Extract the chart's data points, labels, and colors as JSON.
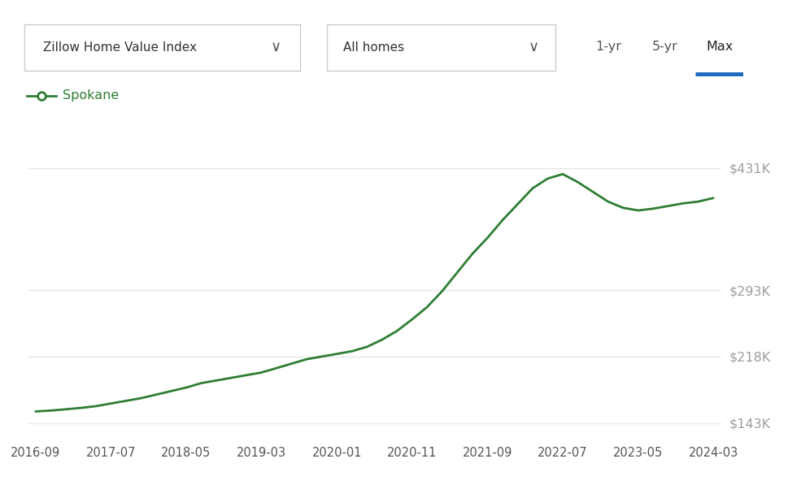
{
  "line_color": "#2e7d32",
  "background_color": "#ffffff",
  "grid_color": "#e8e8e8",
  "ylabel_color": "#9e9e9e",
  "xlabel_color": "#555555",
  "legend_label": "Spokane",
  "y_ticks": [
    143000,
    218000,
    293000,
    431000
  ],
  "y_tick_labels": [
    "$143K",
    "$218K",
    "$293K",
    "$431K"
  ],
  "ylim": [
    125000,
    470000
  ],
  "x_tick_labels": [
    "2016-09",
    "2017-07",
    "2018-05",
    "2019-03",
    "2020-01",
    "2020-11",
    "2021-09",
    "2022-07",
    "2023-05",
    "2024-03"
  ],
  "button_labels": [
    "1-yr",
    "5-yr",
    "Max"
  ],
  "active_button": "Max",
  "dropdown1": "Zillow Home Value Index",
  "dropdown2": "All homes",
  "blue_underline_color": "#1a6bbf",
  "values": [
    156000,
    157000,
    158500,
    160000,
    162000,
    165000,
    168000,
    171000,
    175000,
    179000,
    183000,
    188000,
    191000,
    194000,
    197000,
    200000,
    205000,
    210000,
    215000,
    218000,
    221000,
    224000,
    229000,
    237000,
    247000,
    260000,
    274000,
    292000,
    313000,
    334000,
    352000,
    372000,
    390000,
    408000,
    419000,
    424000,
    415000,
    404000,
    393000,
    386000,
    383000,
    385000,
    388000,
    391000,
    393000,
    397000
  ],
  "n_points": 46
}
